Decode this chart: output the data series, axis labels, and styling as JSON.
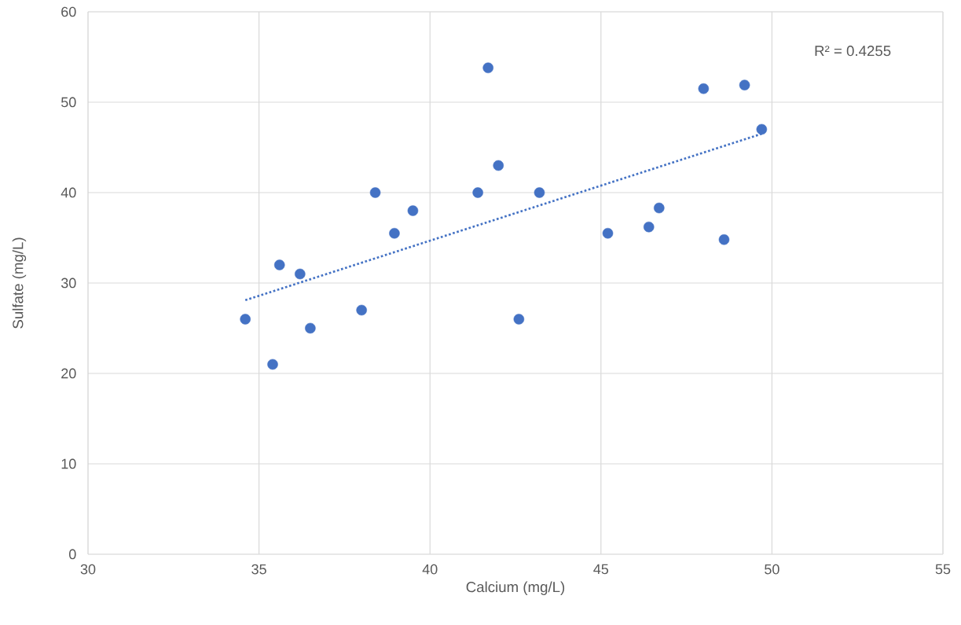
{
  "chart_data": {
    "type": "scatter",
    "xlabel": "Calcium (mg/L)",
    "ylabel": "Sulfate (mg/L)",
    "xlim": [
      30,
      55
    ],
    "xticks": [
      30,
      35,
      40,
      45,
      50,
      55
    ],
    "ylim": [
      0,
      60
    ],
    "yticks": [
      0,
      10,
      20,
      30,
      40,
      50,
      60
    ],
    "grid": true,
    "marker": "circle",
    "annotations": [
      "R² = 0.4255"
    ],
    "series": [
      {
        "color": "#4472c4",
        "x": [
          34.6,
          35.4,
          35.6,
          36.2,
          36.5,
          38.0,
          38.4,
          38.96,
          39.5,
          41.4,
          41.7,
          42.0,
          42.6,
          43.2,
          45.2,
          46.4,
          46.7,
          48.0,
          48.6,
          49.2,
          49.7
        ],
        "values": [
          26,
          21,
          32,
          31,
          25,
          27,
          40,
          35.5,
          38,
          40,
          53.8,
          43,
          26,
          40,
          35.5,
          36.2,
          38.3,
          51.5,
          34.8,
          51.9,
          47
        ]
      },
      {
        "type": "line",
        "color": "#4472c4",
        "line_style": "dotted",
        "marker": "none",
        "x": [
          34.6,
          49.7
        ],
        "values": [
          28.1,
          46.5
        ]
      }
    ]
  }
}
